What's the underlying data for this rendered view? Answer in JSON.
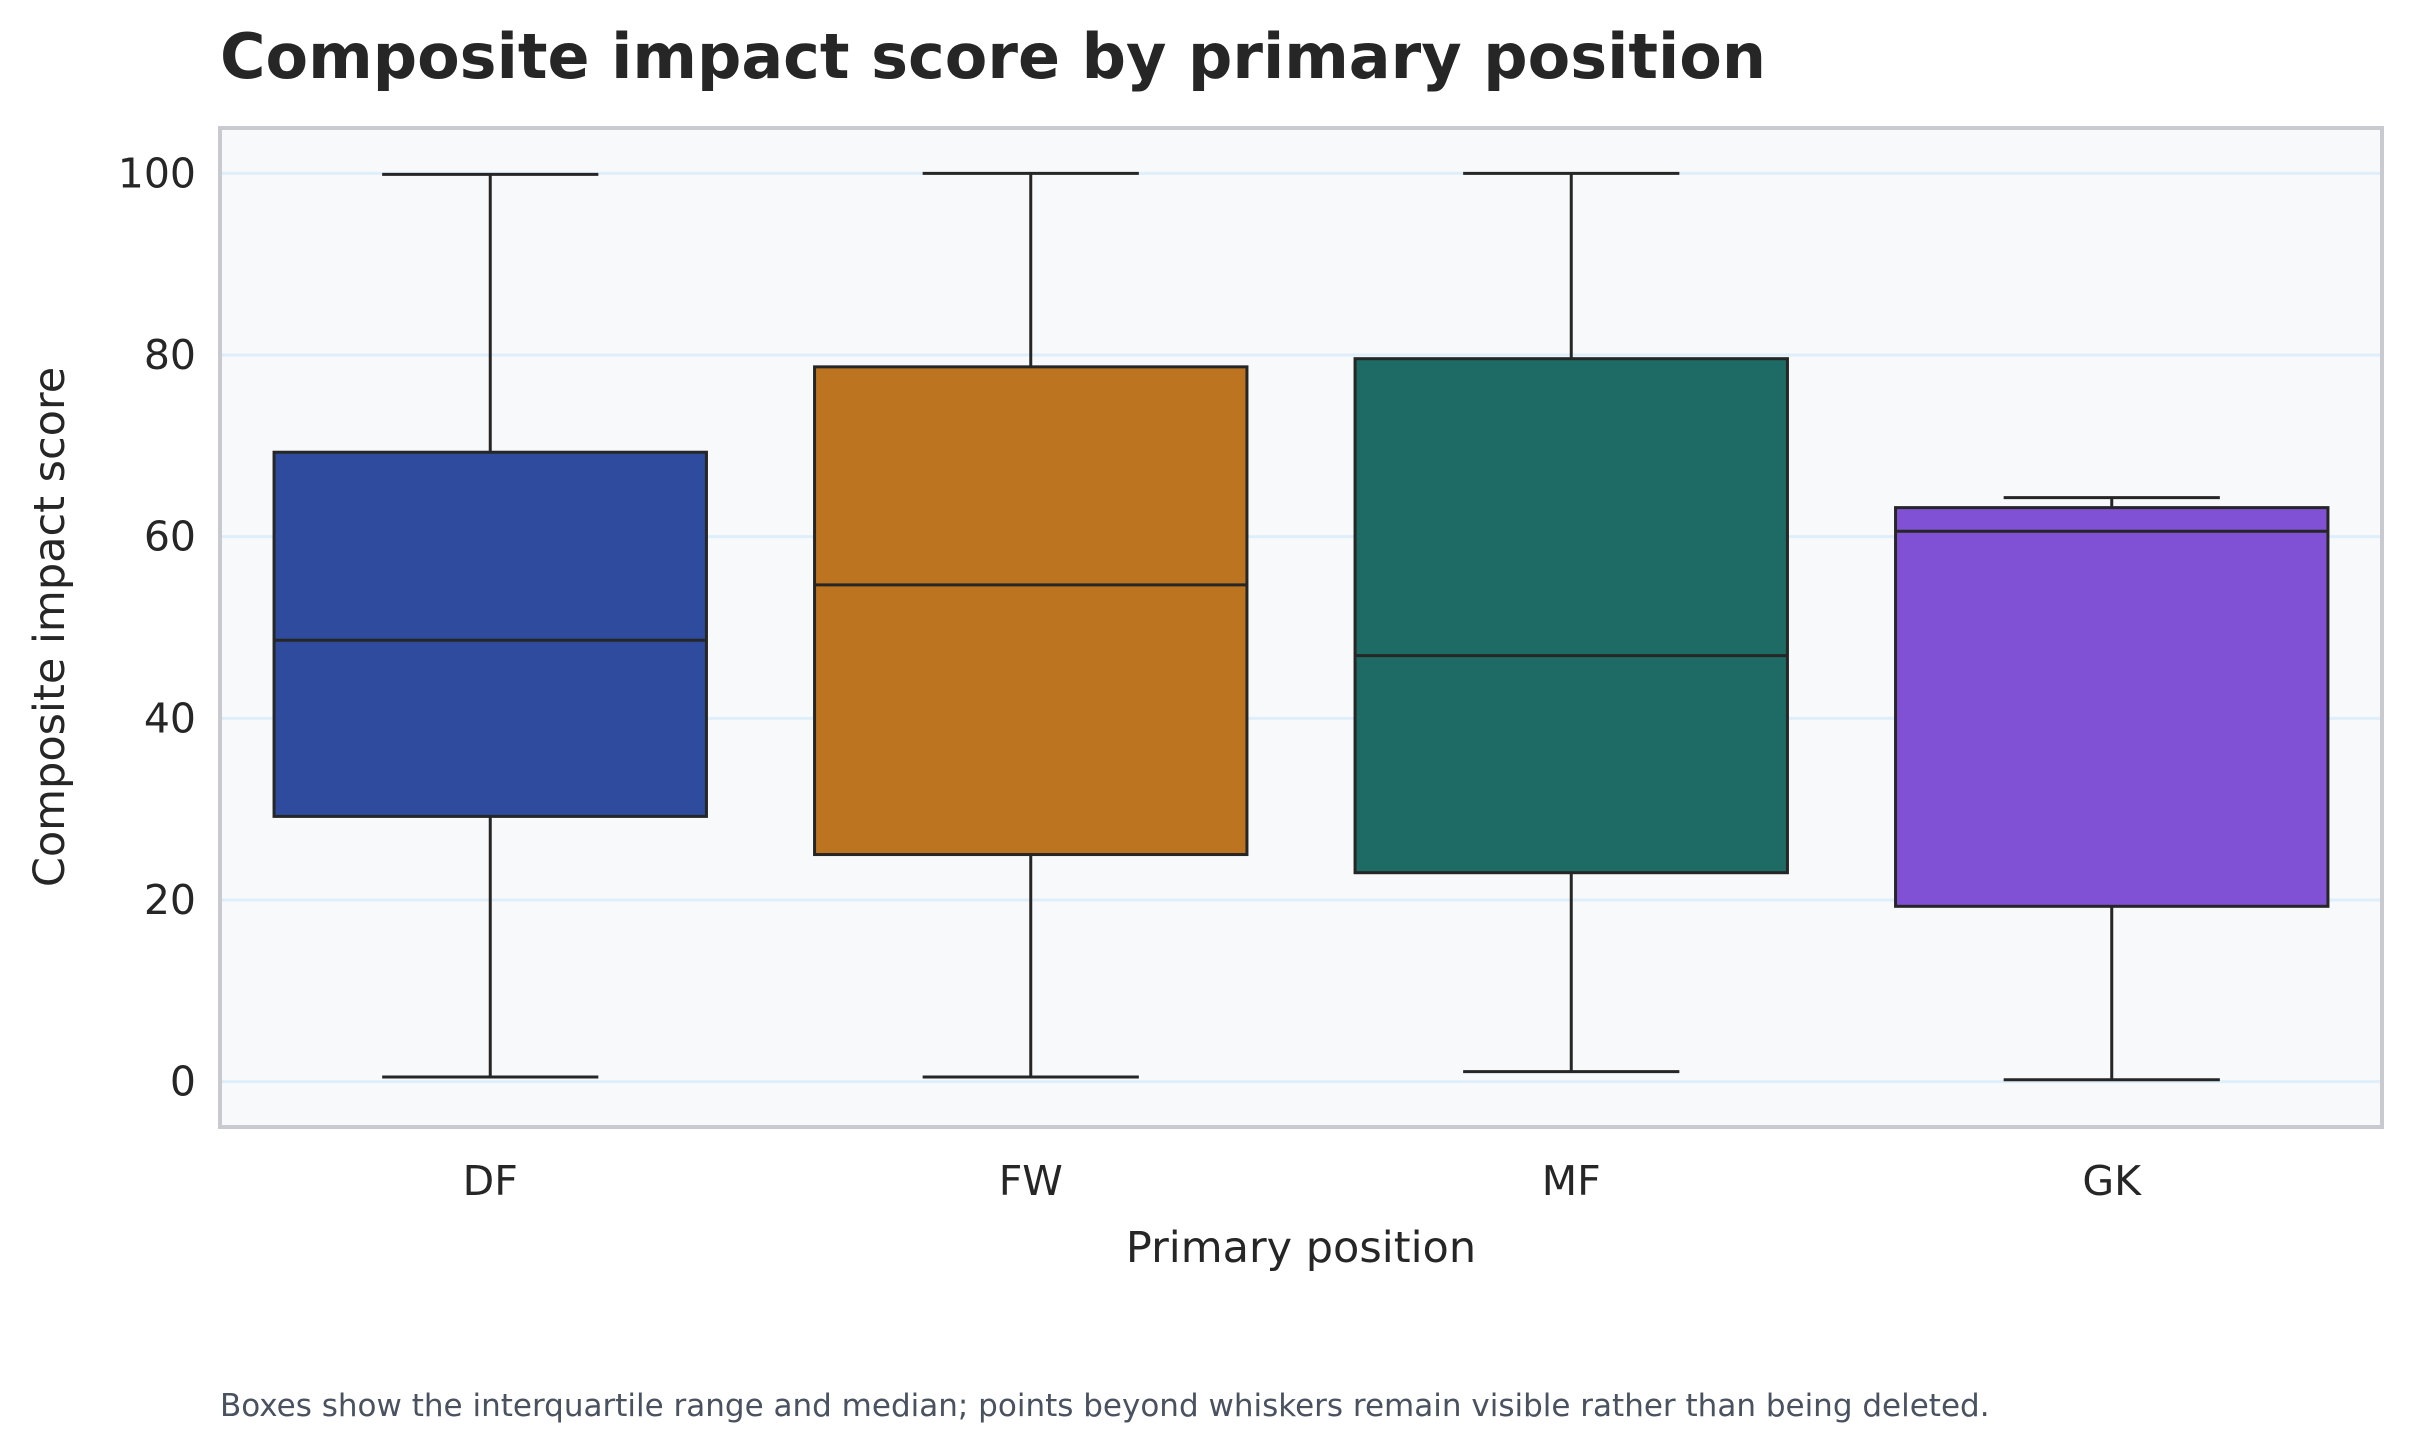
{
  "chart_data": {
    "type": "box",
    "title": "Composite impact score by primary position",
    "xlabel": "Primary position",
    "ylabel": "Composite impact score",
    "caption": "Boxes show the interquartile range and median; points beyond whiskers remain visible rather than being deleted.",
    "ylim": [
      -5,
      105
    ],
    "yticks": [
      0,
      20,
      40,
      60,
      80,
      100
    ],
    "grid": "horizontal",
    "legend": "none",
    "categories": [
      "DF",
      "FW",
      "MF",
      "GK"
    ],
    "series": [
      {
        "category": "DF",
        "color": "#2f4b9d",
        "min": 0.5,
        "q1": 29.2,
        "median": 48.6,
        "q3": 69.3,
        "max": 99.9
      },
      {
        "category": "FW",
        "color": "#bc7420",
        "min": 0.5,
        "q1": 25.0,
        "median": 54.7,
        "q3": 78.7,
        "max": 100.0
      },
      {
        "category": "MF",
        "color": "#1d6b64",
        "min": 1.1,
        "q1": 23.0,
        "median": 46.9,
        "q3": 79.6,
        "max": 100.0
      },
      {
        "category": "GK",
        "color": "#8051d5",
        "min": 0.2,
        "q1": 19.3,
        "median": 60.6,
        "q3": 63.2,
        "max": 64.3
      }
    ],
    "colors": {
      "plot_background": "#f8f9fb",
      "grid": "#dfeefb",
      "frame": "#c8cacf",
      "outline": "#262626"
    }
  }
}
